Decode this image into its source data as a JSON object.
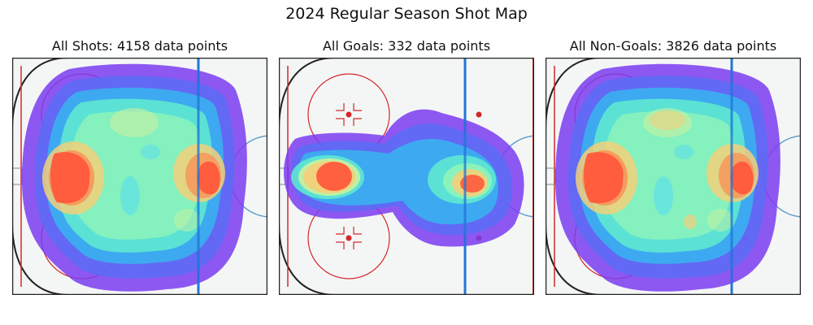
{
  "figure": {
    "suptitle": "2024 Regular Season Shot Map"
  },
  "chart_data": [
    {
      "type": "heatmap",
      "title": "All Shots: 4158 data points",
      "subset": "all-shots",
      "count": 4158,
      "colormap": "rainbow",
      "hotspots": [
        "left-slot",
        "right-slot"
      ]
    },
    {
      "type": "heatmap",
      "title": "All Goals: 332 data points",
      "subset": "goals",
      "count": 332,
      "colormap": "rainbow",
      "hotspots": [
        "left-slot",
        "right-slot"
      ]
    },
    {
      "type": "heatmap",
      "title": "All Non-Goals: 3826 data points",
      "subset": "non-goals",
      "count": 3826,
      "colormap": "rainbow",
      "hotspots": [
        "left-slot",
        "right-slot"
      ]
    }
  ],
  "colors": {
    "rink_fill": "#f4f6f6",
    "goal_line": "#d62728",
    "blue_line": "#1f77d4",
    "board": "#222222",
    "colormap": [
      "#7a3cf0",
      "#5a6cf5",
      "#37b5f0",
      "#5ee8d0",
      "#8ff5b8",
      "#c9f2a0",
      "#f2d07a",
      "#f59a5c",
      "#ff5a3c"
    ]
  }
}
